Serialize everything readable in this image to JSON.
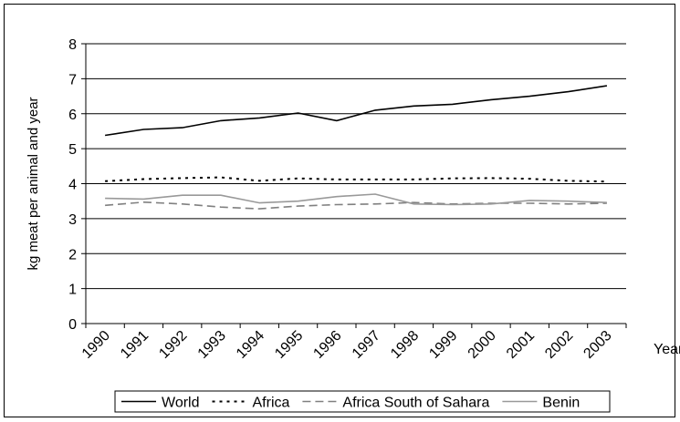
{
  "chart_data": {
    "type": "line",
    "title": "",
    "xlabel": "Year",
    "ylabel": "kg meat per animal and year",
    "categories": [
      "1990",
      "1991",
      "1992",
      "1993",
      "1994",
      "1995",
      "1996",
      "1997",
      "1998",
      "1999",
      "2000",
      "2001",
      "2002",
      "2003"
    ],
    "ylim": [
      0,
      8
    ],
    "yticks": [
      0,
      1,
      2,
      3,
      4,
      5,
      6,
      7,
      8
    ],
    "grid": true,
    "legend_position": "bottom",
    "series": [
      {
        "name": "World",
        "color": "#000000",
        "dash": "solid",
        "values": [
          5.38,
          5.55,
          5.6,
          5.8,
          5.88,
          6.02,
          5.8,
          6.1,
          6.22,
          6.27,
          6.4,
          6.5,
          6.63,
          6.8
        ]
      },
      {
        "name": "Africa",
        "color": "#000000",
        "dash": "dotted",
        "values": [
          4.07,
          4.13,
          4.16,
          4.18,
          4.08,
          4.15,
          4.12,
          4.12,
          4.12,
          4.15,
          4.16,
          4.14,
          4.08,
          4.06
        ]
      },
      {
        "name": "Africa South of Sahara",
        "color": "#808080",
        "dash": "dashed",
        "values": [
          3.38,
          3.47,
          3.42,
          3.33,
          3.28,
          3.36,
          3.4,
          3.42,
          3.46,
          3.42,
          3.44,
          3.44,
          3.42,
          3.44
        ]
      },
      {
        "name": "Benin",
        "color": "#999999",
        "dash": "solid",
        "values": [
          3.58,
          3.56,
          3.67,
          3.67,
          3.45,
          3.5,
          3.63,
          3.7,
          3.42,
          3.4,
          3.42,
          3.52,
          3.5,
          3.46
        ]
      }
    ]
  }
}
